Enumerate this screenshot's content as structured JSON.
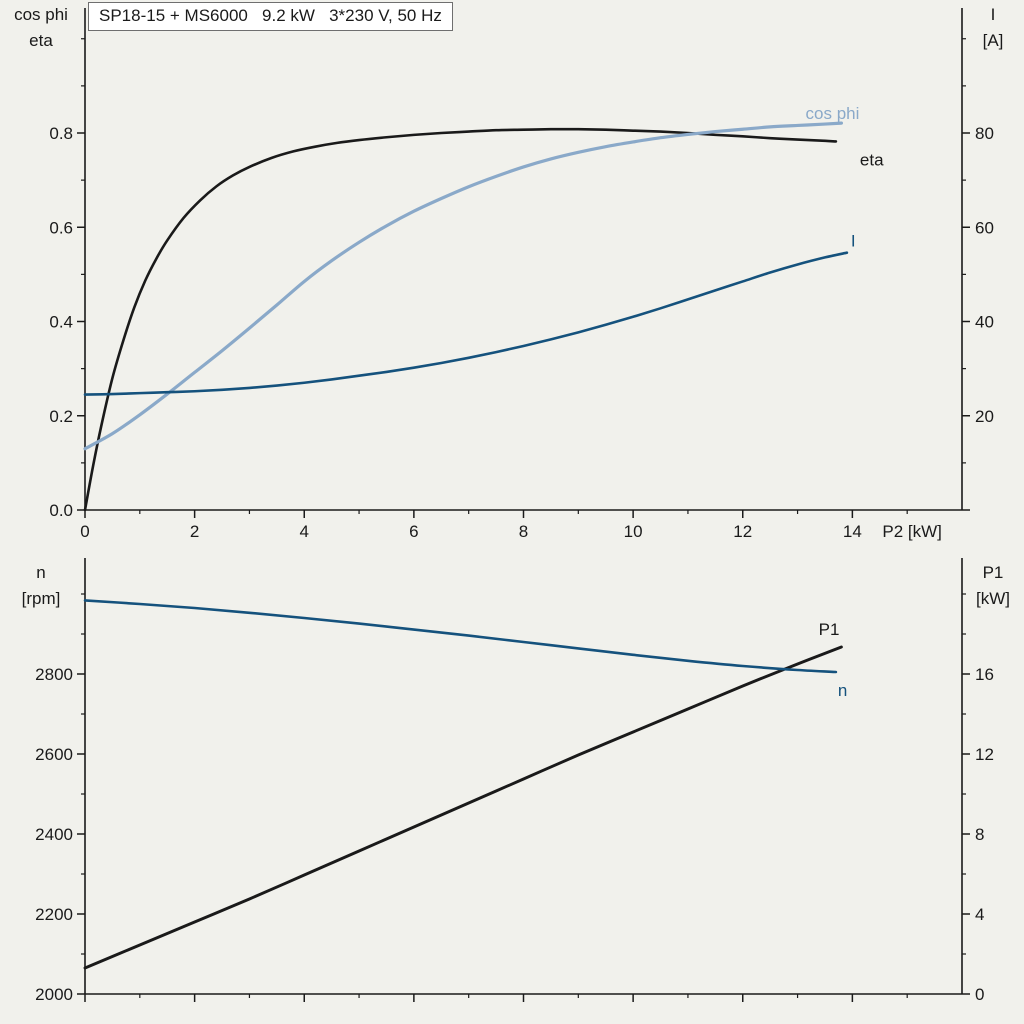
{
  "chart_data": [
    {
      "type": "line",
      "title": "SP18-15 + MS6000   9.2 kW   3*230 V, 50 Hz",
      "x_axis": {
        "label": "P2 [kW]",
        "range": [
          0,
          16
        ],
        "ticks": [
          0,
          2,
          4,
          6,
          8,
          10,
          12,
          14
        ],
        "tick_labels": [
          "0",
          "2",
          "4",
          "6",
          "8",
          "10",
          "12",
          "14"
        ],
        "minor_step": 1,
        "show_tick_labels": true
      },
      "left_axis": {
        "label_lines": [
          "cos phi",
          "eta"
        ],
        "ticks": [
          0,
          0.2,
          0.4,
          0.6,
          0.8
        ],
        "tick_labels": [
          "0.0",
          "0.2",
          "0.4",
          "0.6",
          "0.8"
        ],
        "minor_step": 0.1
      },
      "right_axis": {
        "label_lines": [
          "I",
          "[A]"
        ],
        "ticks": [
          20,
          40,
          60,
          80
        ],
        "tick_labels": [
          "20",
          "40",
          "60",
          "80"
        ],
        "minor_step": 10
      },
      "series": [
        {
          "name": "eta",
          "axis": "left",
          "color": "#1a1a1a",
          "points": [
            [
              0,
              0
            ],
            [
              0.15,
              0.095
            ],
            [
              0.3,
              0.18
            ],
            [
              0.5,
              0.28
            ],
            [
              0.7,
              0.36
            ],
            [
              0.9,
              0.43
            ],
            [
              1.1,
              0.487
            ],
            [
              1.3,
              0.533
            ],
            [
              1.5,
              0.572
            ],
            [
              1.8,
              0.62
            ],
            [
              2.1,
              0.657
            ],
            [
              2.4,
              0.687
            ],
            [
              2.7,
              0.71
            ],
            [
              3,
              0.728
            ],
            [
              3.4,
              0.747
            ],
            [
              3.8,
              0.761
            ],
            [
              4.2,
              0.771
            ],
            [
              4.6,
              0.779
            ],
            [
              5,
              0.785
            ],
            [
              5.5,
              0.791
            ],
            [
              6,
              0.796
            ],
            [
              6.5,
              0.8
            ],
            [
              7,
              0.803
            ],
            [
              7.5,
              0.806
            ],
            [
              8,
              0.807
            ],
            [
              8.5,
              0.808
            ],
            [
              9,
              0.808
            ],
            [
              9.5,
              0.807
            ],
            [
              10,
              0.805
            ],
            [
              10.5,
              0.803
            ],
            [
              11,
              0.8
            ],
            [
              11.5,
              0.796
            ],
            [
              12,
              0.793
            ],
            [
              12.5,
              0.789
            ],
            [
              13,
              0.786
            ],
            [
              13.4,
              0.784
            ],
            [
              13.7,
              0.782
            ]
          ]
        },
        {
          "name": "cos phi",
          "axis": "left",
          "color": "#8aa9c9",
          "points": [
            [
              0,
              0.13
            ],
            [
              0.5,
              0.162
            ],
            [
              1,
              0.202
            ],
            [
              1.5,
              0.246
            ],
            [
              2,
              0.292
            ],
            [
              2.5,
              0.338
            ],
            [
              3,
              0.386
            ],
            [
              3.5,
              0.435
            ],
            [
              4,
              0.485
            ],
            [
              4.5,
              0.529
            ],
            [
              5,
              0.568
            ],
            [
              5.5,
              0.603
            ],
            [
              6,
              0.634
            ],
            [
              6.5,
              0.661
            ],
            [
              7,
              0.686
            ],
            [
              7.5,
              0.708
            ],
            [
              8,
              0.728
            ],
            [
              8.5,
              0.745
            ],
            [
              9,
              0.759
            ],
            [
              9.5,
              0.771
            ],
            [
              10,
              0.781
            ],
            [
              10.5,
              0.79
            ],
            [
              11,
              0.797
            ],
            [
              11.5,
              0.803
            ],
            [
              12,
              0.808
            ],
            [
              12.5,
              0.813
            ],
            [
              13,
              0.816
            ],
            [
              13.5,
              0.819
            ],
            [
              13.8,
              0.821
            ]
          ]
        },
        {
          "name": "I",
          "axis": "right",
          "color": "#15527d",
          "points": [
            [
              0,
              24.5
            ],
            [
              0.5,
              24.6
            ],
            [
              1,
              24.8
            ],
            [
              1.5,
              25
            ],
            [
              2,
              25.2
            ],
            [
              2.5,
              25.5
            ],
            [
              3,
              25.9
            ],
            [
              3.5,
              26.4
            ],
            [
              4,
              27
            ],
            [
              4.5,
              27.7
            ],
            [
              5,
              28.5
            ],
            [
              5.5,
              29.3
            ],
            [
              6,
              30.2
            ],
            [
              6.5,
              31.2
            ],
            [
              7,
              32.3
            ],
            [
              7.5,
              33.5
            ],
            [
              8,
              34.8
            ],
            [
              8.5,
              36.2
            ],
            [
              9,
              37.7
            ],
            [
              9.5,
              39.3
            ],
            [
              10,
              41
            ],
            [
              10.5,
              42.8
            ],
            [
              11,
              44.7
            ],
            [
              11.5,
              46.6
            ],
            [
              12,
              48.5
            ],
            [
              12.5,
              50.4
            ],
            [
              13,
              52.1
            ],
            [
              13.5,
              53.6
            ],
            [
              13.9,
              54.6
            ]
          ]
        }
      ]
    },
    {
      "type": "line",
      "x_axis": {
        "label": "",
        "range": [
          0,
          16
        ],
        "ticks": [
          0,
          2,
          4,
          6,
          8,
          10,
          12,
          14
        ],
        "tick_labels": [
          "0",
          "2",
          "4",
          "6",
          "8",
          "10",
          "12",
          "14"
        ],
        "minor_step": 1,
        "show_tick_labels": false
      },
      "left_axis": {
        "label_lines": [
          "n",
          "[rpm]"
        ],
        "ticks": [
          2000,
          2200,
          2400,
          2600,
          2800
        ],
        "tick_labels": [
          "2000",
          "2200",
          "2400",
          "2600",
          "2800"
        ],
        "minor_step": 100
      },
      "right_axis": {
        "label_lines": [
          "P1",
          "[kW]"
        ],
        "ticks": [
          0,
          4,
          8,
          12,
          16
        ],
        "tick_labels": [
          "0",
          "4",
          "8",
          "12",
          "16"
        ],
        "minor_step": 2
      },
      "series": [
        {
          "name": "P1",
          "axis": "right",
          "color": "#1a1a1a",
          "points": [
            [
              0,
              1.3
            ],
            [
              1,
              2.45
            ],
            [
              2,
              3.6
            ],
            [
              3,
              4.75
            ],
            [
              4,
              5.95
            ],
            [
              5,
              7.15
            ],
            [
              6,
              8.35
            ],
            [
              7,
              9.55
            ],
            [
              8,
              10.75
            ],
            [
              9,
              11.95
            ],
            [
              10,
              13.1
            ],
            [
              11,
              14.25
            ],
            [
              12,
              15.4
            ],
            [
              13,
              16.5
            ],
            [
              13.8,
              17.35
            ]
          ]
        },
        {
          "name": "n",
          "axis": "left",
          "color": "#15527d",
          "points": [
            [
              0,
              2984
            ],
            [
              1,
              2975
            ],
            [
              2,
              2965
            ],
            [
              3,
              2953
            ],
            [
              4,
              2940
            ],
            [
              5,
              2926
            ],
            [
              6,
              2911
            ],
            [
              7,
              2896
            ],
            [
              8,
              2880
            ],
            [
              9,
              2864
            ],
            [
              10,
              2848
            ],
            [
              11,
              2833
            ],
            [
              12,
              2820
            ],
            [
              13,
              2810
            ],
            [
              13.7,
              2805
            ]
          ]
        }
      ]
    }
  ]
}
